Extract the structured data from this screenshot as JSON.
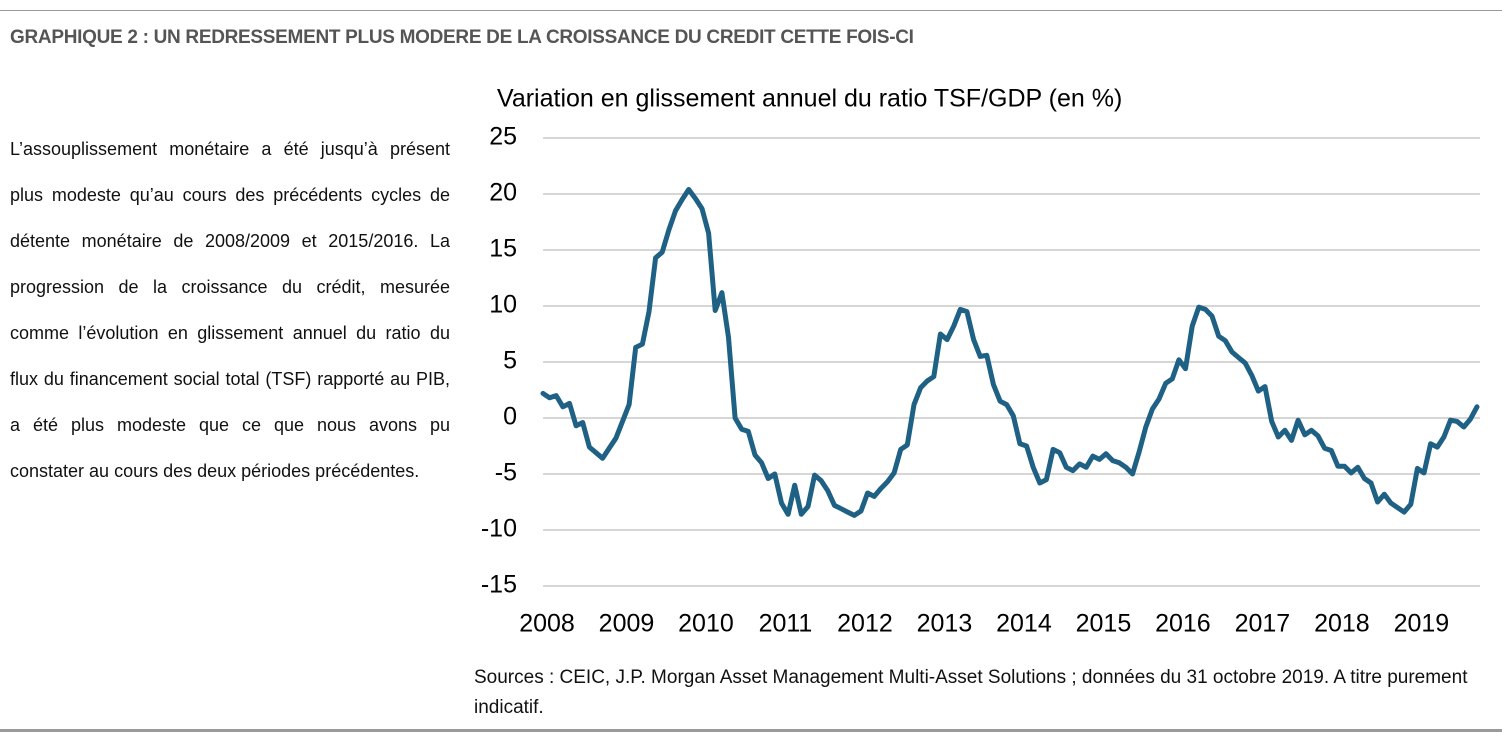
{
  "header": {
    "title": "GRAPHIQUE 2 : UN REDRESSEMENT PLUS MODERE DE LA CROISSANCE DU CREDIT CETTE FOIS-CI"
  },
  "paragraph": "L’assouplissement monétaire a été jusqu’à présent plus modeste qu’au cours des précédents cycles de détente monétaire de 2008/2009 et 2015/2016. La progression de la croissance du crédit, mesurée comme l’évolution en glissement annuel du ratio du flux du financement social total (TSF) rapporté au PIB, a été plus modeste que ce que nous avons pu constater au cours des deux périodes précédentes.",
  "sources": "Sources : CEIC, J.P. Morgan Asset Management Multi-Asset Solutions ; données du 31 octobre 2019. A titre purement indicatif.",
  "chart_data": {
    "type": "line",
    "title": "Variation en glissement annuel du ratio TSF/GDP (en %)",
    "categories": [
      "2008",
      null,
      null,
      null,
      null,
      null,
      null,
      null,
      null,
      null,
      null,
      null,
      "2009",
      null,
      null,
      null,
      null,
      null,
      null,
      null,
      null,
      null,
      null,
      null,
      "2010",
      null,
      null,
      null,
      null,
      null,
      null,
      null,
      null,
      null,
      null,
      null,
      "2011",
      null,
      null,
      null,
      null,
      null,
      null,
      null,
      null,
      null,
      null,
      null,
      "2012",
      null,
      null,
      null,
      null,
      null,
      null,
      null,
      null,
      null,
      null,
      null,
      "2013",
      null,
      null,
      null,
      null,
      null,
      null,
      null,
      null,
      null,
      null,
      null,
      "2014",
      null,
      null,
      null,
      null,
      null,
      null,
      null,
      null,
      null,
      null,
      null,
      "2015",
      null,
      null,
      null,
      null,
      null,
      null,
      null,
      null,
      null,
      null,
      null,
      "2016",
      null,
      null,
      null,
      null,
      null,
      null,
      null,
      null,
      null,
      null,
      null,
      "2017",
      null,
      null,
      null,
      null,
      null,
      null,
      null,
      null,
      null,
      null,
      null,
      "2018",
      null,
      null,
      null,
      null,
      null,
      null,
      null,
      null,
      null,
      null,
      null,
      "2019",
      null,
      null,
      null,
      null,
      null,
      null,
      null,
      null,
      null
    ],
    "values": [
      2.2,
      1.8,
      2.0,
      1.0,
      1.3,
      -0.7,
      -0.4,
      -2.6,
      -3.1,
      -3.6,
      -2.7,
      -1.8,
      -0.3,
      1.2,
      6.3,
      6.6,
      9.5,
      14.3,
      14.8,
      16.8,
      18.5,
      19.5,
      20.4,
      19.6,
      18.7,
      16.5,
      9.6,
      11.2,
      7.2,
      0.0,
      -1.0,
      -1.2,
      -3.3,
      -4.0,
      -5.4,
      -5.0,
      -7.6,
      -8.6,
      -6.0,
      -8.6,
      -7.9,
      -5.1,
      -5.6,
      -6.5,
      -7.8,
      -8.1,
      -8.4,
      -8.7,
      -8.3,
      -6.7,
      -7.0,
      -6.3,
      -5.7,
      -4.9,
      -2.8,
      -2.4,
      1.2,
      2.7,
      3.3,
      3.7,
      7.5,
      7.0,
      8.2,
      9.7,
      9.5,
      7.0,
      5.5,
      5.6,
      3.0,
      1.5,
      1.2,
      0.2,
      -2.3,
      -2.5,
      -4.4,
      -5.8,
      -5.5,
      -2.8,
      -3.1,
      -4.4,
      -4.7,
      -4.1,
      -4.4,
      -3.4,
      -3.7,
      -3.2,
      -3.8,
      -4.0,
      -4.4,
      -5.0,
      -3.0,
      -0.8,
      0.8,
      1.7,
      3.1,
      3.5,
      5.2,
      4.4,
      8.2,
      9.9,
      9.7,
      9.1,
      7.3,
      6.9,
      5.9,
      5.4,
      4.9,
      3.8,
      2.4,
      2.8,
      -0.3,
      -1.7,
      -1.1,
      -2.0,
      -0.2,
      -1.5,
      -1.1,
      -1.6,
      -2.7,
      -2.9,
      -4.3,
      -4.3,
      -4.9,
      -4.4,
      -5.4,
      -5.8,
      -7.5,
      -6.8,
      -7.6,
      -8.0,
      -8.4,
      -7.7,
      -4.5,
      -4.9,
      -2.3,
      -2.6,
      -1.7,
      -0.2,
      -0.3,
      -0.8,
      -0.1,
      1.0
    ],
    "color": "#1f6185",
    "ylim": [
      -15,
      25
    ],
    "yticks": [
      -15,
      -10,
      -5,
      0,
      5,
      10,
      15,
      20,
      25
    ],
    "grid": true
  }
}
